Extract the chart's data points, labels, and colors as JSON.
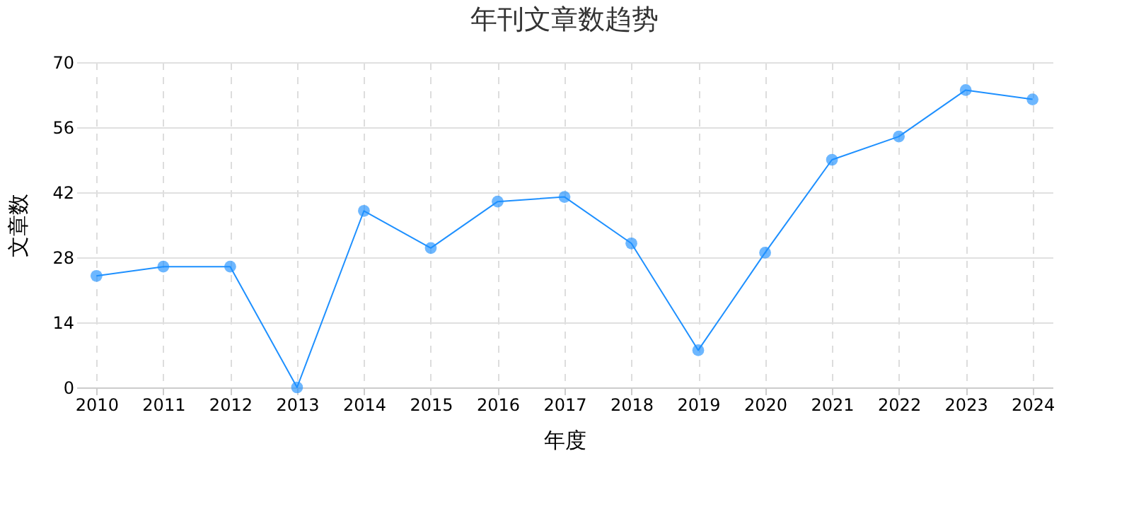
{
  "chart_data": {
    "type": "line",
    "title": "年刊文章数趋势",
    "xlabel": "年度",
    "ylabel": "文章数",
    "categories": [
      "2010",
      "2011",
      "2012",
      "2013",
      "2014",
      "2015",
      "2016",
      "2017",
      "2018",
      "2019",
      "2020",
      "2021",
      "2022",
      "2023",
      "2024"
    ],
    "series": [
      {
        "color": "#1e90ff",
        "values": [
          24,
          26,
          26,
          0,
          38,
          30,
          40,
          41,
          31,
          8,
          29,
          49,
          54,
          64,
          62
        ]
      }
    ],
    "ylim": [
      0,
      70
    ],
    "yticks": [
      0,
      14,
      28,
      42,
      56,
      70
    ],
    "grid": true,
    "marker": "circle",
    "line_style": "solid"
  }
}
